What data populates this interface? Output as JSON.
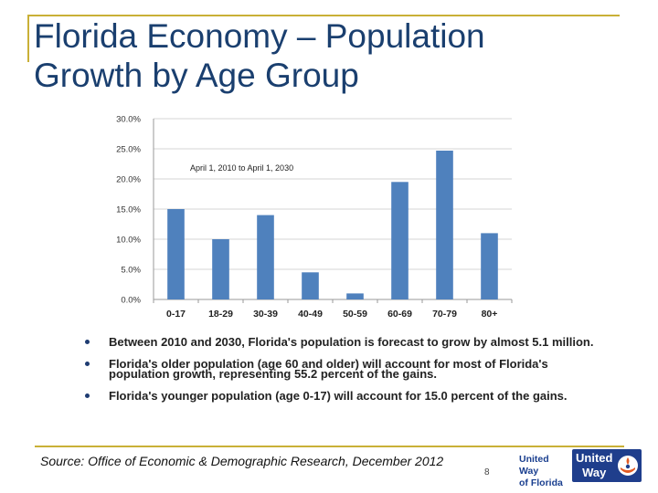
{
  "slide": {
    "title_line1": "Florida Economy – Population",
    "title_line2": "Growth by Age Group",
    "bullets": [
      "Between 2010 and 2030, Florida's population is forecast to grow by almost 5.1 million.",
      "Florida's older population (age 60 and older) will account for most of Florida's population growth, representing 55.2 percent of the gains.",
      "Florida's younger population (age 0-17) will account for 15.0 percent of the gains."
    ],
    "source": "Source:  Office of Economic & Demographic Research, December 2012",
    "page_number": "8",
    "logo_text_line1": "United Way",
    "logo_text_line2": "of Florida",
    "logo_badge_line1": "United",
    "logo_badge_line2": "Way"
  },
  "colors": {
    "title": "#1a3f6f",
    "bar": "#4f81bd",
    "accent_rule": "#c9b037",
    "logo_blue": "#1f3e8c"
  },
  "chart_data": {
    "type": "bar",
    "title": "",
    "annotation": "April 1, 2010 to April 1, 2030",
    "categories": [
      "0-17",
      "18-29",
      "30-39",
      "40-49",
      "50-59",
      "60-69",
      "70-79",
      "80+"
    ],
    "values": [
      15.0,
      10.0,
      14.0,
      4.5,
      1.0,
      19.5,
      24.7,
      11.0
    ],
    "ylim": [
      0,
      30
    ],
    "yticks": [
      "0.0%",
      "5.0%",
      "10.0%",
      "15.0%",
      "20.0%",
      "25.0%",
      "30.0%"
    ],
    "xlabel": "",
    "ylabel": "",
    "grid": true,
    "legend": "none"
  }
}
